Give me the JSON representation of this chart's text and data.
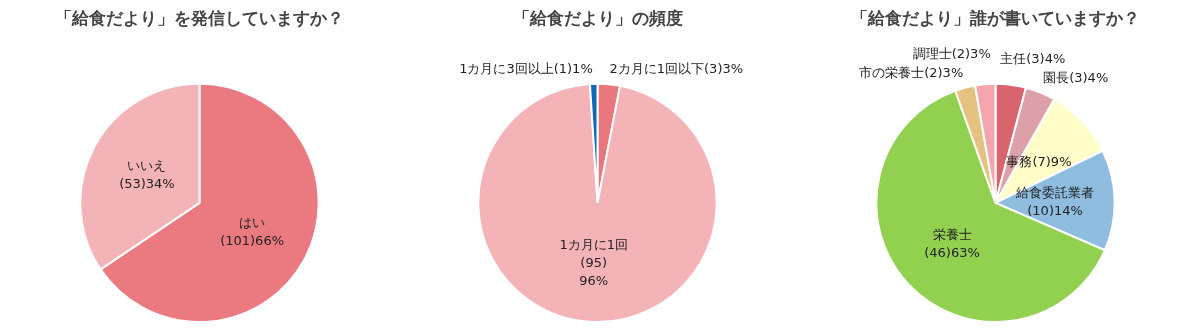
{
  "chart_data": [
    {
      "type": "pie",
      "title": "「給食だより」を発信していますか？",
      "categories": [
        "はい",
        "いいえ"
      ],
      "values": [
        101,
        53
      ],
      "value_labels": [
        "(101)66%",
        "(53)34%"
      ],
      "colors": [
        "#eb7a80",
        "#f4b3b7"
      ]
    },
    {
      "type": "pie",
      "title": "「給食だより」の頻度",
      "categories": [
        "2カ月に1回以下",
        "1カ月に1回",
        "1カ月に3回以上"
      ],
      "values": [
        3,
        95,
        1
      ],
      "value_labels": [
        "(3)3%",
        "(95)\n96%",
        "(1)1%"
      ],
      "colors": [
        "#e9777d",
        "#f4b3b7",
        "#0a6ab8"
      ]
    },
    {
      "type": "pie",
      "title": "「給食だより」誰が書いていますか？",
      "categories": [
        "主任",
        "園長",
        "事務",
        "給食委託業者",
        "栄養士",
        "市の栄養士",
        "調理士"
      ],
      "values": [
        3,
        3,
        7,
        10,
        46,
        2,
        2
      ],
      "value_labels": [
        "(3)4%",
        "(3)4%",
        "(7)9%",
        "(10)14%",
        "(46)63%",
        "(2)3%",
        "(2)3%"
      ],
      "colors": [
        "#d9646e",
        "#dea0a8",
        "#fffdc8",
        "#8fbde0",
        "#92d050",
        "#e3c37f",
        "#f4a4ac"
      ]
    }
  ]
}
